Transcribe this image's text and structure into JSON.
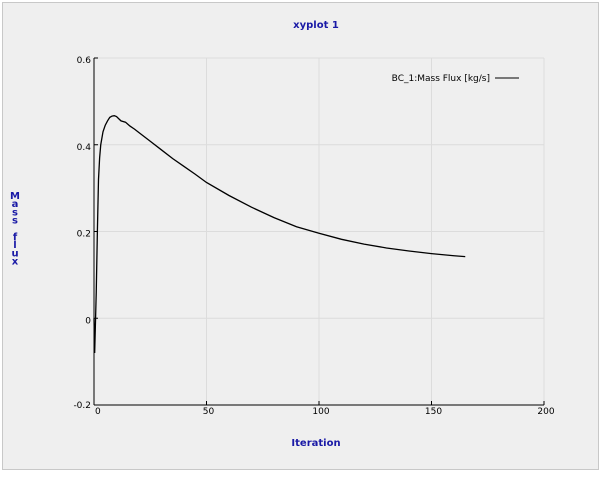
{
  "colors": {
    "title": "#1a1aa6",
    "axis": "#000000",
    "grid": "#dcdcdc",
    "line": "#000000",
    "background": "#efefef"
  },
  "chart_data": {
    "type": "line",
    "title": "xyplot 1",
    "xlabel": "Iteration",
    "ylabel": "Mass flux",
    "xlim": [
      0,
      200
    ],
    "ylim": [
      -0.2,
      0.6
    ],
    "xticks": [
      0,
      50,
      100,
      150,
      200
    ],
    "xtick_labels": [
      "0",
      "50",
      "100",
      "150",
      "200"
    ],
    "yticks": [
      -0.2,
      0,
      0.2,
      0.4,
      0.6
    ],
    "ytick_labels": [
      "-0.2",
      "0",
      "0.2",
      "0.4",
      "0.6"
    ],
    "grid": true,
    "legend_position": "top-right",
    "series": [
      {
        "name": "BC_1:Mass Flux [kg/s]",
        "x": [
          0,
          0.3,
          0.6,
          1,
          1.5,
          2,
          2.5,
          3,
          4,
          5,
          6,
          7,
          8,
          9,
          10,
          11,
          12,
          14,
          16,
          18,
          20,
          25,
          30,
          35,
          40,
          45,
          50,
          60,
          70,
          80,
          90,
          100,
          110,
          120,
          130,
          140,
          150,
          160,
          165
        ],
        "y": [
          0,
          -0.08,
          -0.02,
          0.06,
          0.2,
          0.32,
          0.37,
          0.4,
          0.43,
          0.445,
          0.455,
          0.463,
          0.466,
          0.467,
          0.465,
          0.46,
          0.455,
          0.452,
          0.443,
          0.436,
          0.428,
          0.408,
          0.388,
          0.368,
          0.35,
          0.332,
          0.313,
          0.283,
          0.256,
          0.232,
          0.211,
          0.196,
          0.182,
          0.171,
          0.162,
          0.155,
          0.149,
          0.144,
          0.142
        ]
      }
    ]
  }
}
